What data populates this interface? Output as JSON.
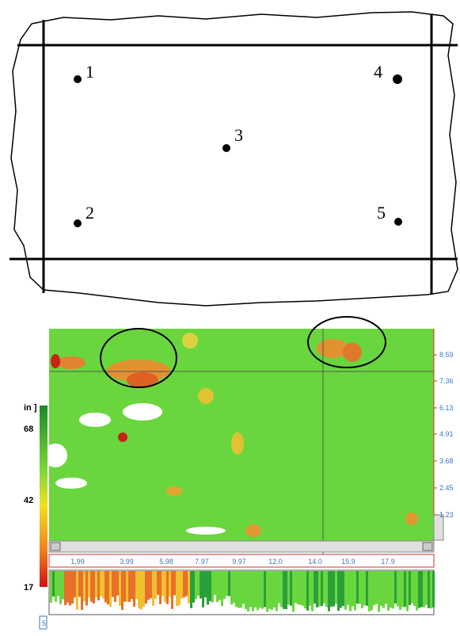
{
  "diagram": {
    "points": [
      {
        "label": "1"
      },
      {
        "label": "2"
      },
      {
        "label": "3"
      },
      {
        "label": "4"
      },
      {
        "label": "5"
      }
    ]
  },
  "scan": {
    "colorbar": {
      "unit": "in ]",
      "labels": [
        "68",
        "42",
        "17"
      ]
    },
    "right_axis": [
      "8.59",
      "7.36",
      "6.13",
      "4.91",
      "3.68",
      "2.45",
      "1.23"
    ],
    "bottom_axis": [
      "1.99",
      "3.99",
      "5.98",
      "7.97",
      "9.97",
      "12.0",
      "14.0",
      "15.9",
      "17.9"
    ],
    "corner_label": "5"
  }
}
